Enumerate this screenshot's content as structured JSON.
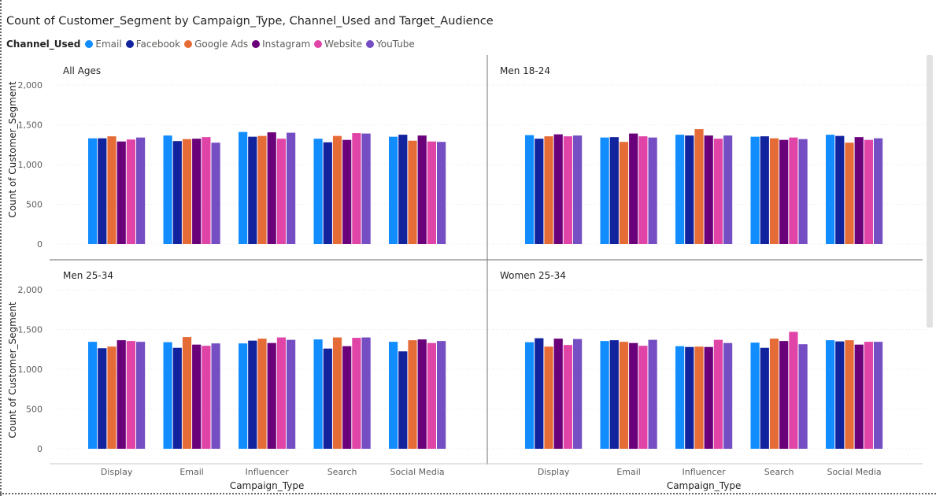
{
  "chart_data": {
    "type": "bar",
    "title": "Count of Customer_Segment by Campaign_Type, Channel_Used and Target_Audience",
    "legend_title": "Channel_Used",
    "xlabel": "Campaign_Type",
    "ylabel": "Count of Customer_Segment",
    "ylim": [
      0,
      2000
    ],
    "yticks": [
      0,
      500,
      1000,
      1500,
      2000
    ],
    "ytick_labels": [
      "0",
      "500",
      "1,000",
      "1,500",
      "2,000"
    ],
    "grid": true,
    "legend_position": "top-left",
    "categories": [
      "Display",
      "Email",
      "Influencer",
      "Search",
      "Social Media"
    ],
    "series_names": [
      "Email",
      "Facebook",
      "Google Ads",
      "Instagram",
      "Website",
      "YouTube"
    ],
    "colors": [
      "#118DFF",
      "#12239E",
      "#E66C37",
      "#6B007B",
      "#E044A7",
      "#744EC2"
    ],
    "panels": [
      {
        "label": "All Ages",
        "values": [
          [
            1330,
            1330,
            1355,
            1290,
            1315,
            1340
          ],
          [
            1365,
            1295,
            1320,
            1325,
            1345,
            1275
          ],
          [
            1410,
            1350,
            1360,
            1405,
            1325,
            1400
          ],
          [
            1325,
            1280,
            1360,
            1310,
            1395,
            1390
          ],
          [
            1350,
            1375,
            1300,
            1365,
            1290,
            1285
          ]
        ]
      },
      {
        "label": "Men 18-24",
        "values": [
          [
            1370,
            1325,
            1355,
            1380,
            1355,
            1365
          ],
          [
            1340,
            1345,
            1285,
            1390,
            1355,
            1340
          ],
          [
            1375,
            1365,
            1445,
            1365,
            1325,
            1365
          ],
          [
            1350,
            1355,
            1330,
            1310,
            1340,
            1320
          ],
          [
            1375,
            1360,
            1275,
            1345,
            1310,
            1330
          ]
        ]
      },
      {
        "label": "Men 25-34",
        "values": [
          [
            1345,
            1265,
            1285,
            1365,
            1355,
            1345
          ],
          [
            1340,
            1270,
            1405,
            1310,
            1295,
            1325
          ],
          [
            1325,
            1360,
            1385,
            1330,
            1400,
            1370
          ],
          [
            1375,
            1260,
            1400,
            1290,
            1395,
            1400
          ],
          [
            1345,
            1225,
            1365,
            1375,
            1330,
            1355
          ]
        ]
      },
      {
        "label": "Women 25-34",
        "values": [
          [
            1340,
            1390,
            1285,
            1385,
            1305,
            1380
          ],
          [
            1355,
            1365,
            1345,
            1330,
            1295,
            1370
          ],
          [
            1290,
            1280,
            1285,
            1280,
            1370,
            1330
          ],
          [
            1335,
            1270,
            1385,
            1355,
            1470,
            1315
          ],
          [
            1365,
            1350,
            1365,
            1310,
            1345,
            1345
          ]
        ]
      }
    ]
  }
}
